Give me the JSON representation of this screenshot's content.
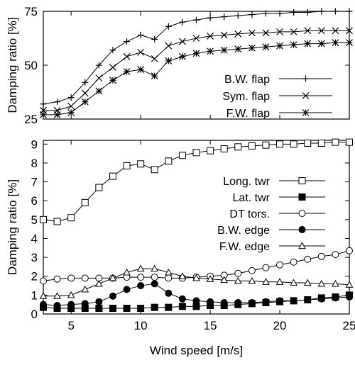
{
  "chart_data": [
    {
      "type": "line",
      "ylabel": "Damping ratio [%]",
      "xlim": [
        3,
        25
      ],
      "ylim": [
        25,
        75
      ],
      "yticks": [
        25,
        50,
        75
      ],
      "grid": false,
      "legend_position": "bottom-right",
      "x": [
        3,
        4,
        5,
        6,
        7,
        8,
        9,
        10,
        11,
        12,
        13,
        14,
        15,
        16,
        17,
        18,
        19,
        20,
        21,
        22,
        23,
        24,
        25
      ],
      "series": [
        {
          "name": "B.W. flap",
          "marker": "plus",
          "values": [
            32,
            33,
            35,
            42,
            50,
            57,
            61,
            64,
            62,
            68,
            70,
            71,
            72,
            72.5,
            73,
            73.5,
            74,
            74,
            74.5,
            74.5,
            75,
            75,
            75
          ]
        },
        {
          "name": "Sym. flap",
          "marker": "cross",
          "values": [
            29,
            29,
            31,
            37,
            44,
            49,
            54,
            56,
            53,
            59,
            61,
            62.5,
            63.5,
            64,
            64.5,
            65,
            65,
            65.5,
            65.5,
            66,
            66,
            66,
            66
          ]
        },
        {
          "name": "F.W. flap",
          "marker": "asterisk",
          "values": [
            27,
            27,
            28,
            33,
            38,
            43,
            47,
            48,
            45,
            52,
            54,
            55.5,
            56.5,
            57,
            57.5,
            58,
            58.5,
            59,
            59.5,
            60,
            60,
            60.5,
            60.5
          ]
        }
      ]
    },
    {
      "type": "line",
      "xlabel": "Wind speed [m/s]",
      "ylabel": "Damping ratio [%]",
      "xlim": [
        3,
        25
      ],
      "ylim": [
        0,
        9.2
      ],
      "xticks": [
        5,
        10,
        15,
        20,
        25
      ],
      "yticks": [
        0,
        1,
        2,
        3,
        4,
        5,
        6,
        7,
        8,
        9
      ],
      "grid": false,
      "legend_position": "right-middle",
      "x": [
        3,
        4,
        5,
        6,
        7,
        8,
        9,
        10,
        11,
        12,
        13,
        14,
        15,
        16,
        17,
        18,
        19,
        20,
        21,
        22,
        23,
        24,
        25
      ],
      "series": [
        {
          "name": "Long. twr",
          "marker": "open-square",
          "values": [
            5.0,
            4.9,
            5.1,
            5.9,
            6.7,
            7.3,
            7.85,
            7.95,
            7.65,
            8.1,
            8.4,
            8.55,
            8.65,
            8.75,
            8.85,
            8.9,
            8.95,
            9.0,
            9.0,
            9.05,
            9.05,
            9.1,
            9.1
          ]
        },
        {
          "name": "Lat. twr",
          "marker": "filled-square",
          "values": [
            0.35,
            0.3,
            0.3,
            0.3,
            0.3,
            0.3,
            0.3,
            0.3,
            0.35,
            0.35,
            0.4,
            0.4,
            0.45,
            0.45,
            0.5,
            0.55,
            0.6,
            0.65,
            0.7,
            0.75,
            0.85,
            0.9,
            1.0
          ]
        },
        {
          "name": "DT tors.",
          "marker": "open-circle",
          "values": [
            1.75,
            1.85,
            1.9,
            1.9,
            1.9,
            1.9,
            1.95,
            1.95,
            1.95,
            1.9,
            1.9,
            1.95,
            2.0,
            2.05,
            2.15,
            2.3,
            2.45,
            2.6,
            2.75,
            2.9,
            3.05,
            3.15,
            3.35
          ]
        },
        {
          "name": "B.W. edge",
          "marker": "filled-circle",
          "values": [
            0.5,
            0.45,
            0.5,
            0.55,
            0.65,
            0.95,
            1.3,
            1.5,
            1.6,
            1.1,
            0.8,
            0.7,
            0.65,
            0.6,
            0.6,
            0.6,
            0.65,
            0.7,
            0.7,
            0.75,
            0.8,
            0.85,
            0.9
          ]
        },
        {
          "name": "F.W. edge",
          "marker": "open-triangle",
          "values": [
            0.95,
            0.95,
            1.0,
            1.3,
            1.6,
            1.9,
            2.2,
            2.4,
            2.4,
            2.2,
            2.0,
            1.9,
            1.85,
            1.8,
            1.75,
            1.75,
            1.7,
            1.7,
            1.65,
            1.65,
            1.6,
            1.6,
            1.55
          ]
        }
      ]
    }
  ]
}
